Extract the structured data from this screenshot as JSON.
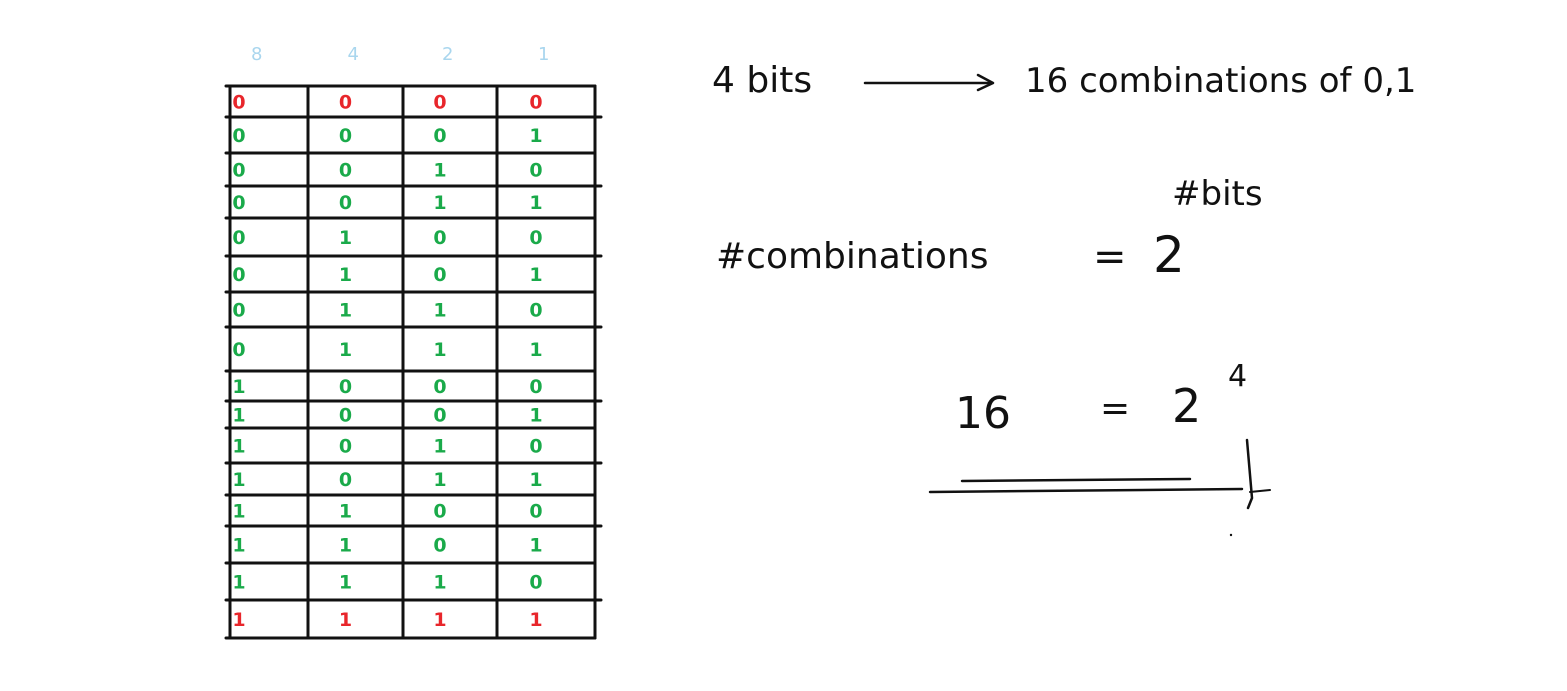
{
  "table": {
    "place_values": [
      "8",
      "4",
      "2",
      "1"
    ],
    "rows": [
      [
        "0",
        "0",
        "0",
        "0"
      ],
      [
        "0",
        "0",
        "0",
        "1"
      ],
      [
        "0",
        "0",
        "1",
        "0"
      ],
      [
        "0",
        "0",
        "1",
        "1"
      ],
      [
        "0",
        "1",
        "0",
        "0"
      ],
      [
        "0",
        "1",
        "0",
        "1"
      ],
      [
        "0",
        "1",
        "1",
        "0"
      ],
      [
        "0",
        "1",
        "1",
        "1"
      ],
      [
        "1",
        "0",
        "0",
        "0"
      ],
      [
        "1",
        "0",
        "0",
        "1"
      ],
      [
        "1",
        "0",
        "1",
        "0"
      ],
      [
        "1",
        "0",
        "1",
        "1"
      ],
      [
        "1",
        "1",
        "0",
        "0"
      ],
      [
        "1",
        "1",
        "0",
        "1"
      ],
      [
        "1",
        "1",
        "1",
        "0"
      ],
      [
        "1",
        "1",
        "1",
        "1"
      ]
    ]
  },
  "notes": {
    "line1_left": "4 bits",
    "line1_right": "16 combinations of 0,1",
    "formula_exponent": "#bits",
    "formula_left": "#combinations",
    "formula_equals": "=",
    "formula_base": "2",
    "example_left": "16",
    "example_equals": "=",
    "example_base": "2",
    "example_exponent": "4"
  },
  "colors": {
    "ink": "#111111",
    "red": "#e8262b",
    "green": "#1aaa4a",
    "light_blue": "#a9d6ee"
  }
}
